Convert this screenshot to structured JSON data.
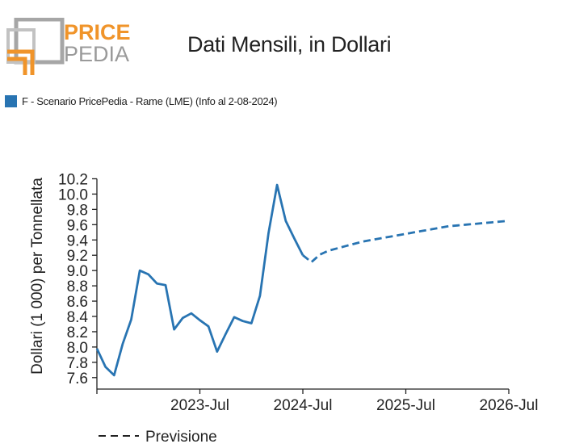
{
  "header": {
    "logo_top": "PRICE",
    "logo_bottom": "PEDIA",
    "title": "Dati Mensili, in Dollari"
  },
  "colors": {
    "series": "#2874b2",
    "logo_orange": "#f0942a",
    "logo_gray": "#9a9a9a"
  },
  "chart_data": {
    "type": "line",
    "title": "Dati Mensili, in Dollari",
    "ylabel": "Dollari (1 000) per Tonnellata",
    "xlabel": "",
    "ylim": [
      7.45,
      10.3
    ],
    "yticks": [
      7.6,
      7.8,
      8.0,
      8.2,
      8.4,
      8.6,
      8.8,
      9.0,
      9.2,
      9.4,
      9.6,
      9.8,
      10.0,
      10.2
    ],
    "ytick_labels": [
      "7.6",
      "7.8",
      "8.0",
      "8.2",
      "8.4",
      "8.6",
      "8.8",
      "9.0",
      "9.2",
      "9.4",
      "9.6",
      "9.8",
      "10.0",
      "10.2"
    ],
    "xlim": [
      "2022-07",
      "2026-07"
    ],
    "xticks": [
      "2023-07",
      "2024-07",
      "2025-07",
      "2026-07"
    ],
    "xtick_labels": [
      "2023-Jul",
      "2024-Jul",
      "2025-Jul",
      "2026-Jul"
    ],
    "legend": {
      "position": "top-left"
    },
    "series": [
      {
        "name": "F - Scenario PricePedia - Rame (LME) (Info al 2-08-2024)",
        "style": "solid",
        "x": [
          "2022-07",
          "2022-08",
          "2022-09",
          "2022-10",
          "2022-11",
          "2022-12",
          "2023-01",
          "2023-02",
          "2023-03",
          "2023-04",
          "2023-05",
          "2023-06",
          "2023-07",
          "2023-08",
          "2023-09",
          "2023-10",
          "2023-11",
          "2023-12",
          "2024-01",
          "2024-02",
          "2024-03",
          "2024-04",
          "2024-05",
          "2024-06",
          "2024-07"
        ],
        "values": [
          7.98,
          7.74,
          7.63,
          8.04,
          8.36,
          9.0,
          8.95,
          8.83,
          8.81,
          8.23,
          8.38,
          8.44,
          8.35,
          8.27,
          7.94,
          8.17,
          8.39,
          8.34,
          8.31,
          8.67,
          9.49,
          10.12,
          9.65,
          9.42,
          9.2
        ]
      },
      {
        "name": "Previsione",
        "style": "dashed",
        "x": [
          "2024-07",
          "2024-08",
          "2024-09",
          "2024-10",
          "2024-11",
          "2024-12",
          "2025-01",
          "2025-02",
          "2025-03",
          "2025-04",
          "2025-05",
          "2025-06",
          "2025-07",
          "2025-08",
          "2025-09",
          "2025-10",
          "2025-11",
          "2025-12",
          "2026-01",
          "2026-02",
          "2026-03",
          "2026-04",
          "2026-05",
          "2026-06",
          "2026-07"
        ],
        "values": [
          9.2,
          9.11,
          9.21,
          9.26,
          9.29,
          9.32,
          9.35,
          9.38,
          9.4,
          9.42,
          9.44,
          9.46,
          9.48,
          9.5,
          9.52,
          9.54,
          9.56,
          9.58,
          9.59,
          9.6,
          9.61,
          9.62,
          9.63,
          9.64,
          9.65
        ]
      }
    ]
  }
}
